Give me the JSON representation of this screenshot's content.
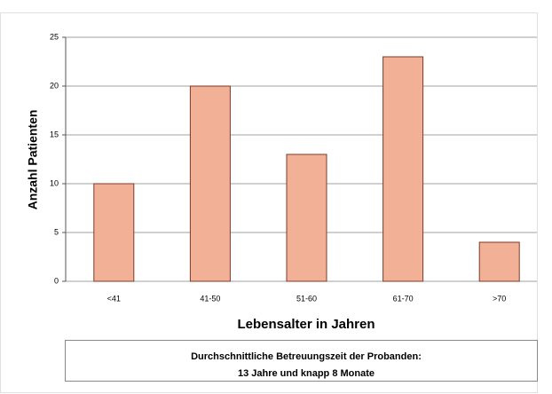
{
  "chart_data": {
    "type": "bar",
    "categories": [
      "<41",
      "41-50",
      "51-60",
      "61-70",
      ">70"
    ],
    "values": [
      10,
      20,
      13,
      23,
      4
    ],
    "color": "#f2b197",
    "ylim": [
      0,
      25
    ],
    "yticks": [
      0,
      5,
      10,
      15,
      20,
      25
    ],
    "grid": true,
    "y_label": "Anzahl Patienten",
    "x_label": "Lebensalter in Jahren",
    "annotation": [
      "Durchschnittliche Betreuungszeit der Probanden:",
      "13 Jahre und knapp 8 Monate"
    ]
  }
}
